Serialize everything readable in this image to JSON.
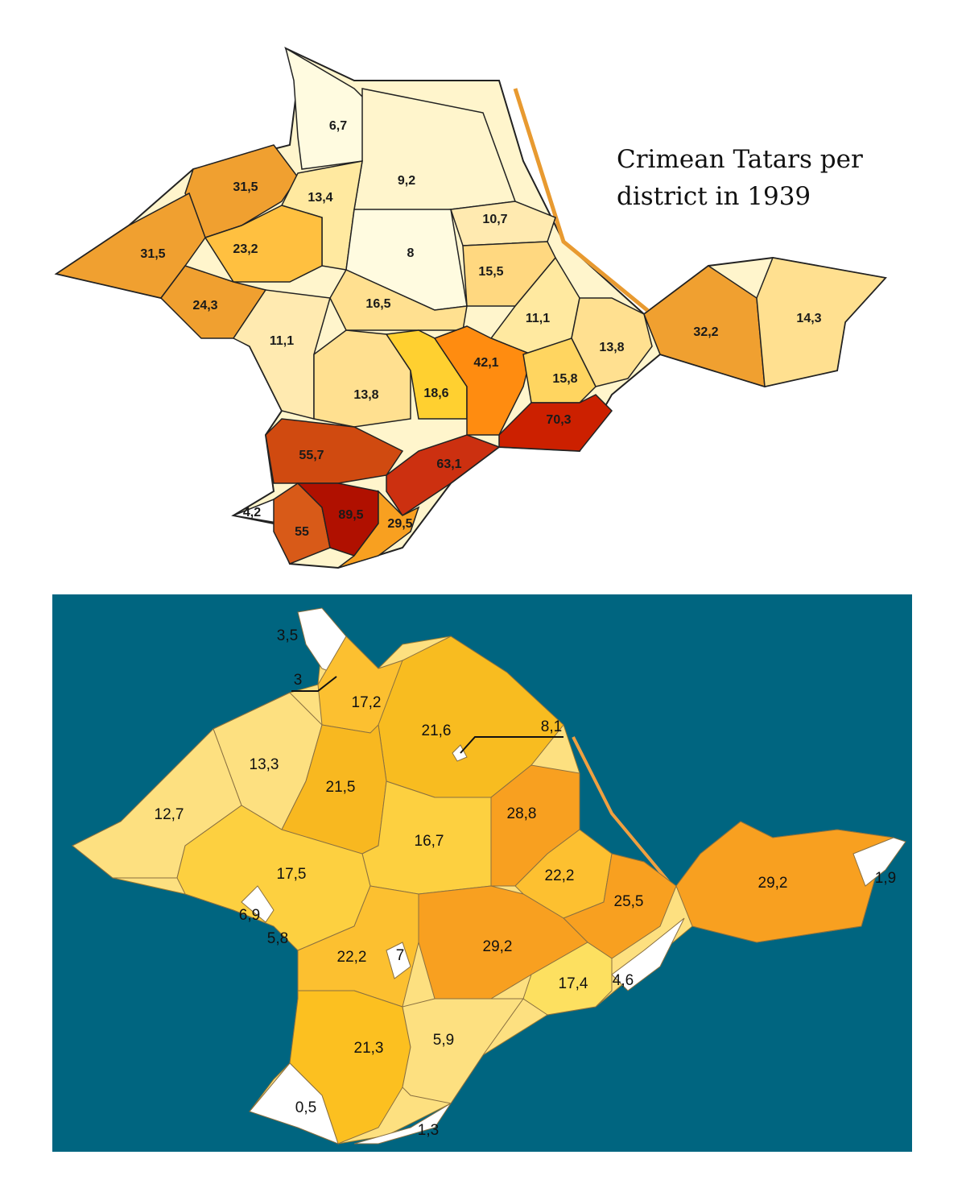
{
  "top_map": {
    "title_lines": [
      "Crimean Tatars per",
      "district in 1939"
    ],
    "districts": [
      {
        "label": "6,7",
        "color": "#fffbe0"
      },
      {
        "label": "9,2",
        "color": "#fff5cc"
      },
      {
        "label": "31,5",
        "color": "#f0a030"
      },
      {
        "label": "13,4",
        "color": "#ffe9a0"
      },
      {
        "label": "31,5",
        "color": "#f0a030"
      },
      {
        "label": "23,2",
        "color": "#ffc040"
      },
      {
        "label": "8",
        "color": "#fffbe0"
      },
      {
        "label": "10,7",
        "color": "#ffeab0"
      },
      {
        "label": "15,5",
        "color": "#ffd880"
      },
      {
        "label": "24,3",
        "color": "#f0a030"
      },
      {
        "label": "16,5",
        "color": "#ffe090"
      },
      {
        "label": "11,1",
        "color": "#ffe9a0"
      },
      {
        "label": "11,1",
        "color": "#ffeab0"
      },
      {
        "label": "13,8",
        "color": "#ffe090"
      },
      {
        "label": "18,6",
        "color": "#ffd030"
      },
      {
        "label": "42,1",
        "color": "#ff8c10"
      },
      {
        "label": "13,8",
        "color": "#ffe090"
      },
      {
        "label": "15,8",
        "color": "#ffd560"
      },
      {
        "label": "32,2",
        "color": "#f0a030"
      },
      {
        "label": "14,3",
        "color": "#ffe090"
      },
      {
        "label": "70,3",
        "color": "#cc2000"
      },
      {
        "label": "55,7",
        "color": "#d04a10"
      },
      {
        "label": "63,1",
        "color": "#cc3010"
      },
      {
        "label": "4,2",
        "color": "#ffffff"
      },
      {
        "label": "55",
        "color": "#d85a18"
      },
      {
        "label": "89,5",
        "color": "#b01000"
      },
      {
        "label": "29,5",
        "color": "#f8a020"
      }
    ]
  },
  "bottom_map": {
    "background": "#006580",
    "districts": [
      {
        "label": "3,5",
        "color": "#ffffff"
      },
      {
        "label": "3",
        "color": "#ffffff"
      },
      {
        "label": "17,2",
        "color": "#fcc030"
      },
      {
        "label": "21,6",
        "color": "#f8bc20"
      },
      {
        "label": "8,1",
        "color": "#ffffff"
      },
      {
        "label": "13,3",
        "color": "#fde080"
      },
      {
        "label": "21,5",
        "color": "#f8b820"
      },
      {
        "label": "12,7",
        "color": "#fde080"
      },
      {
        "label": "16,7",
        "color": "#fdd040"
      },
      {
        "label": "28,8",
        "color": "#f8a020"
      },
      {
        "label": "17,5",
        "color": "#fdd040"
      },
      {
        "label": "22,2",
        "color": "#fdc030"
      },
      {
        "label": "25,5",
        "color": "#f8a020"
      },
      {
        "label": "29,2",
        "color": "#f8a020"
      },
      {
        "label": "1,9",
        "color": "#ffffff"
      },
      {
        "label": "6,9",
        "color": "#ffffff"
      },
      {
        "label": "5,8",
        "color": "#ffffff"
      },
      {
        "label": "22,2",
        "color": "#fcc030"
      },
      {
        "label": "7",
        "color": "#ffffff"
      },
      {
        "label": "29,2",
        "color": "#f8a020"
      },
      {
        "label": "17,4",
        "color": "#fde060"
      },
      {
        "label": "4,6",
        "color": "#ffffff"
      },
      {
        "label": "21,3",
        "color": "#fcc020"
      },
      {
        "label": "5,9",
        "color": "#fde080"
      },
      {
        "label": "0,5",
        "color": "#ffffff"
      },
      {
        "label": "1,3",
        "color": "#ffffff"
      }
    ]
  }
}
